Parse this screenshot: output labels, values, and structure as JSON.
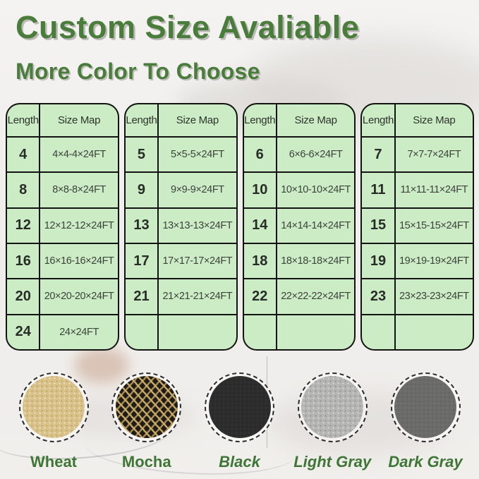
{
  "header": {
    "title": "Custom Size Avaliable",
    "subtitle": "More Color To Choose"
  },
  "colors": {
    "accent_green": "#4a7d3c",
    "table_green": "#cbecc5",
    "label_green": "#3e7636",
    "border_black": "#131313"
  },
  "tables": [
    {
      "headers": [
        "Length",
        "Size Map"
      ],
      "rows": [
        [
          "4",
          "4×4-4×24FT"
        ],
        [
          "8",
          "8×8-8×24FT"
        ],
        [
          "12",
          "12×12-12×24FT"
        ],
        [
          "16",
          "16×16-16×24FT"
        ],
        [
          "20",
          "20×20-20×24FT"
        ],
        [
          "24",
          "24×24FT"
        ]
      ]
    },
    {
      "headers": [
        "Length",
        "Size Map"
      ],
      "rows": [
        [
          "5",
          "5×5-5×24FT"
        ],
        [
          "9",
          "9×9-9×24FT"
        ],
        [
          "13",
          "13×13-13×24FT"
        ],
        [
          "17",
          "17×17-17×24FT"
        ],
        [
          "21",
          "21×21-21×24FT"
        ],
        [
          "",
          ""
        ]
      ]
    },
    {
      "headers": [
        "Length",
        "Size Map"
      ],
      "rows": [
        [
          "6",
          "6×6-6×24FT"
        ],
        [
          "10",
          "10×10-10×24FT"
        ],
        [
          "14",
          "14×14-14×24FT"
        ],
        [
          "18",
          "18×18-18×24FT"
        ],
        [
          "22",
          "22×22-22×24FT"
        ],
        [
          "",
          ""
        ]
      ]
    },
    {
      "headers": [
        "Length",
        "Size Map"
      ],
      "rows": [
        [
          "7",
          "7×7-7×24FT"
        ],
        [
          "11",
          "11×11-11×24FT"
        ],
        [
          "15",
          "15×15-15×24FT"
        ],
        [
          "19",
          "19×19-19×24FT"
        ],
        [
          "23",
          "23×23-23×24FT"
        ],
        [
          "",
          ""
        ]
      ]
    }
  ],
  "swatches": [
    {
      "label": "Wheat",
      "texture": "wheat",
      "base_color": "#d9c289",
      "italic": false
    },
    {
      "label": "Mocha",
      "texture": "mocha",
      "base_color": "#1f1c17",
      "italic": false
    },
    {
      "label": "Black",
      "texture": "black",
      "base_color": "#2d2d2d",
      "italic": true
    },
    {
      "label": "Light Gray",
      "texture": "light-gray",
      "base_color": "#b5b5b3",
      "italic": true
    },
    {
      "label": "Dark Gray",
      "texture": "dark-gray",
      "base_color": "#6b6b69",
      "italic": true
    }
  ]
}
